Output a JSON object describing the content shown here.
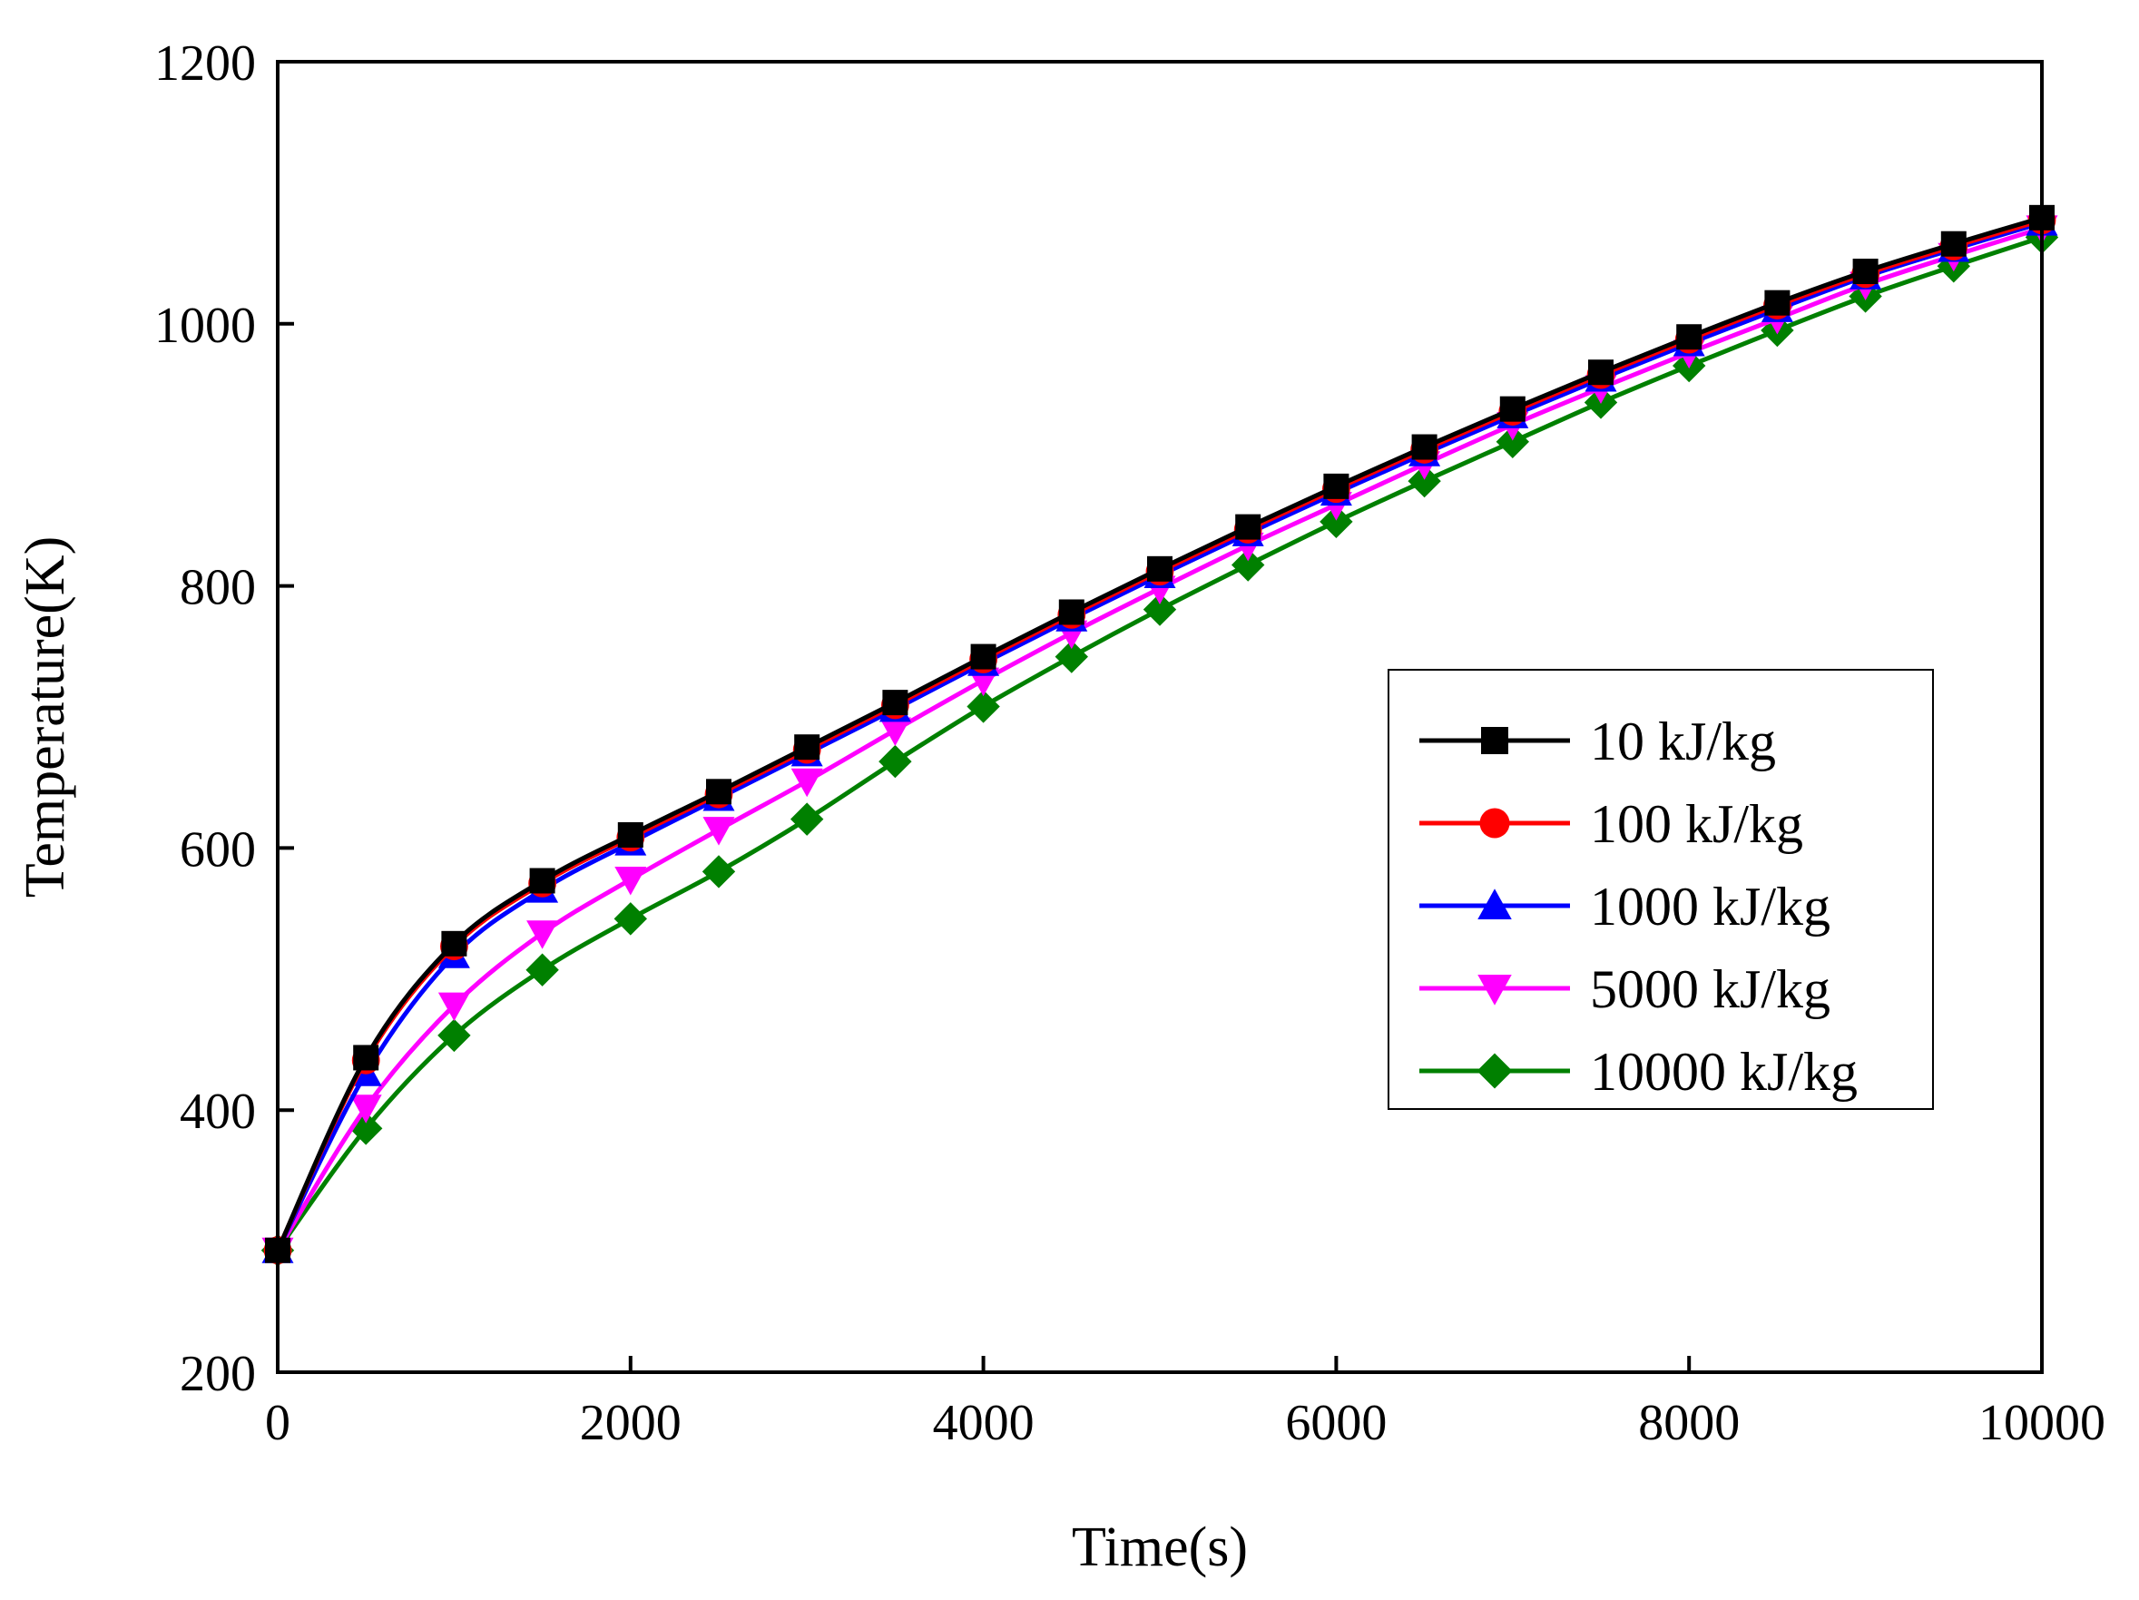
{
  "chart_data": {
    "type": "line",
    "title": "",
    "xlabel": "Time(s)",
    "ylabel": "Temperature(K)",
    "xlim": [
      0,
      10000
    ],
    "ylim": [
      200,
      1200
    ],
    "xticks": [
      0,
      2000,
      4000,
      6000,
      8000,
      10000
    ],
    "yticks": [
      200,
      400,
      600,
      800,
      1000,
      1200
    ],
    "grid": false,
    "legend_position": "center-right",
    "x": [
      0,
      500,
      1000,
      1500,
      2000,
      2500,
      3000,
      3500,
      4000,
      4500,
      5000,
      5500,
      6000,
      6500,
      7000,
      7500,
      8000,
      8500,
      9000,
      9500,
      10000
    ],
    "series": [
      {
        "name": "10 kJ/kg",
        "color": "#000000",
        "marker": "square",
        "values": [
          293,
          440,
          527,
          575,
          610,
          643,
          677,
          711,
          746,
          780,
          813,
          845,
          876,
          906,
          935,
          963,
          990,
          1016,
          1040,
          1061,
          1081
        ]
      },
      {
        "name": "100 kJ/kg",
        "color": "#ff0000",
        "marker": "circle",
        "values": [
          293,
          438,
          525,
          573,
          608,
          641,
          675,
          709,
          744,
          778,
          811,
          843,
          874,
          904,
          933,
          961,
          988,
          1014,
          1038,
          1059,
          1079
        ]
      },
      {
        "name": "1000 kJ/kg",
        "color": "#0000ff",
        "marker": "triangle-up",
        "values": [
          293,
          428,
          518,
          568,
          604,
          638,
          672,
          706,
          741,
          775,
          808,
          840,
          871,
          901,
          930,
          958,
          985,
          1011,
          1036,
          1057,
          1077
        ]
      },
      {
        "name": "5000 kJ/kg",
        "color": "#ff00ff",
        "marker": "triangle-down",
        "values": [
          293,
          402,
          480,
          535,
          576,
          614,
          651,
          690,
          728,
          764,
          798,
          831,
          862,
          893,
          923,
          951,
          978,
          1004,
          1030,
          1052,
          1073
        ]
      },
      {
        "name": "10000 kJ/kg",
        "color": "#008000",
        "marker": "diamond",
        "values": [
          293,
          386,
          457,
          507,
          546,
          582,
          622,
          666,
          708,
          746,
          782,
          816,
          849,
          880,
          910,
          940,
          968,
          995,
          1021,
          1044,
          1066
        ]
      }
    ]
  }
}
